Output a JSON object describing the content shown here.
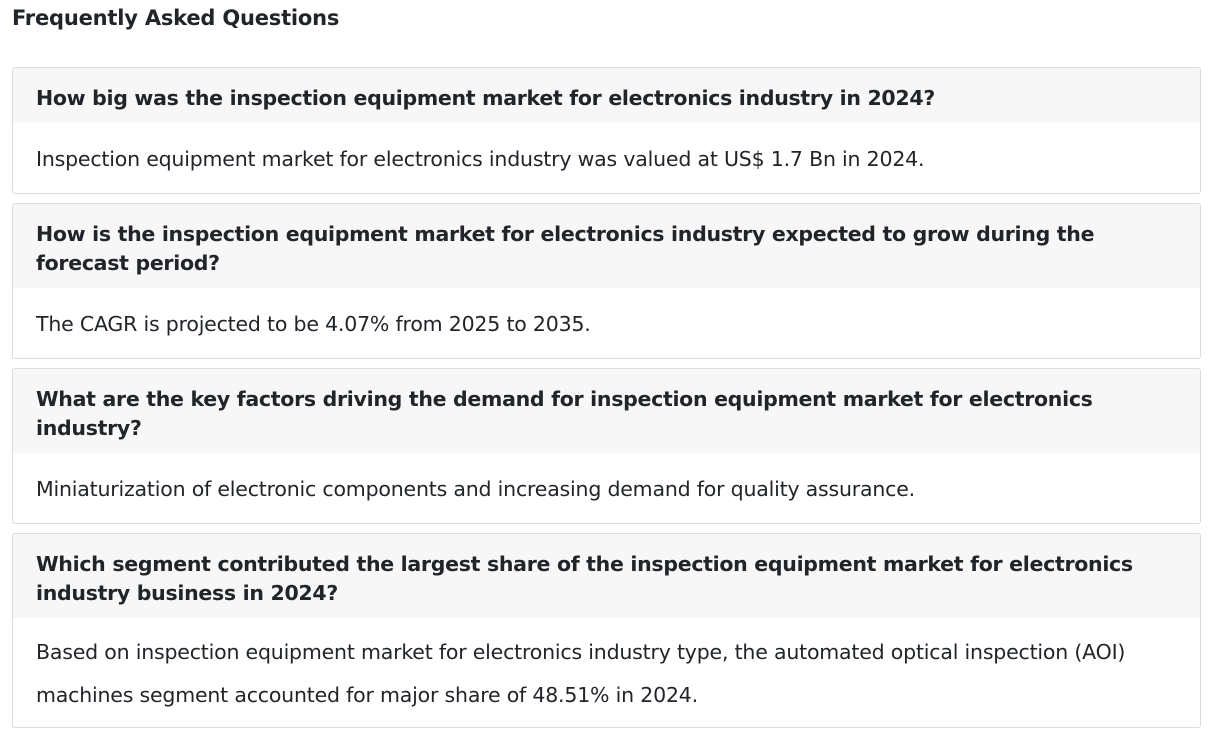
{
  "page": {
    "title": "Frequently Asked Questions"
  },
  "faq": [
    {
      "question": "How big was the inspection equipment market for electronics industry in 2024?",
      "answer": "Inspection equipment market for electronics industry was valued at US$ 1.7 Bn in 2024."
    },
    {
      "question": "How is the inspection equipment market for electronics industry expected to grow during the forecast period?",
      "answer": "The CAGR is projected to be 4.07% from 2025 to 2035."
    },
    {
      "question": "What are the key factors driving the demand for inspection equipment market for electronics industry?",
      "answer": "Miniaturization of electronic components and increasing demand for quality assurance."
    },
    {
      "question": "Which segment contributed the largest share of the inspection equipment market for electronics industry business in 2024?",
      "answer": "Based on inspection equipment market for electronics industry type, the automated optical inspection (AOI) machines segment accounted for major share of 48.51% in 2024."
    }
  ]
}
